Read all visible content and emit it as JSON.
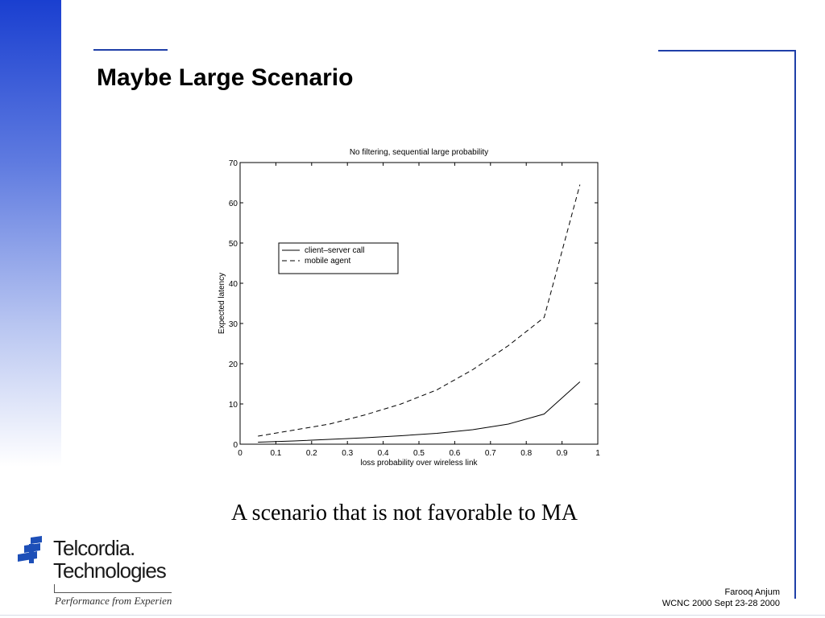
{
  "slide": {
    "title": "Maybe Large Scenario",
    "caption": "A scenario that is not favorable to MA",
    "footer_author": "Farooq Anjum",
    "footer_event": "WCNC 2000 Sept 23-28 2000"
  },
  "logo": {
    "line1": "Telcordia.",
    "line2": "Technologies",
    "tagline": "Performance from Experien"
  },
  "colors": {
    "accent": "#1f3fa8",
    "gradient_top": "#1a3fd0",
    "logo_blue": "#1d4fb8"
  },
  "chart_data": {
    "type": "line",
    "title": "No filtering, sequential large probability",
    "xlabel": "loss probability over wireless link",
    "ylabel": "Expected latency",
    "xlim": [
      0,
      1
    ],
    "ylim": [
      0,
      70
    ],
    "xticks": [
      0,
      0.1,
      0.2,
      0.3,
      0.4,
      0.5,
      0.6,
      0.7,
      0.8,
      0.9,
      1
    ],
    "xtick_labels": [
      "0",
      "0.1",
      "0.2",
      "0.3",
      "0.4",
      "0.5",
      "0.6",
      "0.7",
      "0.8",
      "0.9",
      "1"
    ],
    "yticks": [
      0,
      10,
      20,
      30,
      40,
      50,
      60,
      70
    ],
    "ytick_labels": [
      "0",
      "10",
      "20",
      "30",
      "40",
      "50",
      "60",
      "70"
    ],
    "grid": false,
    "legend_position": "upper-left",
    "x": [
      0.05,
      0.15,
      0.25,
      0.35,
      0.45,
      0.55,
      0.65,
      0.75,
      0.85,
      0.95
    ],
    "series": [
      {
        "name": "client–server call",
        "style": "solid",
        "values": [
          0.5,
          0.8,
          1.2,
          1.6,
          2.1,
          2.7,
          3.6,
          5.0,
          7.5,
          15.5
        ]
      },
      {
        "name": "mobile agent",
        "style": "dashed",
        "values": [
          2.0,
          3.5,
          5.0,
          7.3,
          10.0,
          13.5,
          18.5,
          24.5,
          31.5,
          64.5
        ]
      }
    ]
  }
}
